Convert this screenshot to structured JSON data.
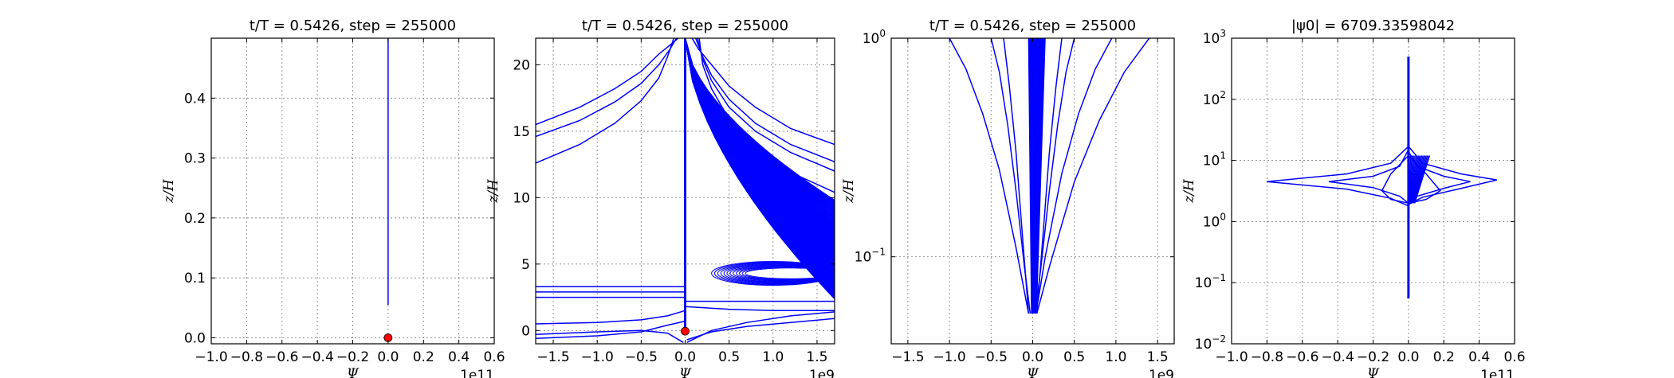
{
  "colors": {
    "line": "#0000ff",
    "marker": "#ff0000",
    "grid": "#888888"
  },
  "chart_data": [
    {
      "type": "line",
      "title": "t/T = 0.5426, step = 255000",
      "xlabel": "Ψ",
      "ylabel": "z/H",
      "x_offset_label": "1e11",
      "xlim": [
        -1.0,
        0.6
      ],
      "ylim": [
        -0.01,
        0.5
      ],
      "xticks": [
        "−1.0",
        "−0.8",
        "−0.6",
        "−0.4",
        "−0.2",
        "0.0",
        "0.2",
        "0.4",
        "0.6"
      ],
      "xtick_values": [
        -1.0,
        -0.8,
        -0.6,
        -0.4,
        -0.2,
        0.0,
        0.2,
        0.4,
        0.6
      ],
      "yticks": [
        "0.0",
        "0.1",
        "0.2",
        "0.3",
        "0.4"
      ],
      "ytick_values": [
        0.0,
        0.1,
        0.2,
        0.3,
        0.4
      ],
      "grid": true,
      "yscale": "linear",
      "series": [
        {
          "x": [
            0.0,
            0.0
          ],
          "y": [
            0.055,
            0.5
          ],
          "width": 4
        }
      ],
      "marker": {
        "x": 0.0,
        "y": 0.0
      }
    },
    {
      "type": "line",
      "title": "t/T = 0.5426, step = 255000",
      "xlabel": "Ψ",
      "ylabel": "z/H",
      "x_offset_label": "1e9",
      "xlim": [
        -1.7,
        1.7
      ],
      "ylim": [
        -1.0,
        22.0
      ],
      "xticks": [
        "−1.5",
        "−1.0",
        "−0.5",
        "0.0",
        "0.5",
        "1.0",
        "1.5"
      ],
      "xtick_values": [
        -1.5,
        -1.0,
        -0.5,
        0.0,
        0.5,
        1.0,
        1.5
      ],
      "yticks": [
        "0",
        "5",
        "10",
        "15",
        "20"
      ],
      "ytick_values": [
        0,
        5,
        10,
        15,
        20
      ],
      "grid": true,
      "yscale": "linear",
      "series": [
        {
          "x": [
            -1.7,
            -1.2,
            -0.8,
            -0.5,
            -0.3,
            -0.15,
            -0.08
          ],
          "y": [
            15.5,
            16.8,
            18.2,
            19.5,
            20.8,
            21.6,
            22.0
          ]
        },
        {
          "x": [
            -1.7,
            -1.2,
            -0.8,
            -0.5,
            -0.3,
            -0.17,
            -0.1
          ],
          "y": [
            14.6,
            15.8,
            17.2,
            18.6,
            20.0,
            21.2,
            22.0
          ]
        },
        {
          "x": [
            -1.7,
            -1.2,
            -0.8,
            -0.5,
            -0.3,
            -0.2,
            -0.13
          ],
          "y": [
            12.6,
            14.0,
            15.6,
            17.3,
            19.0,
            20.6,
            22.0
          ]
        },
        {
          "x": [
            1.7,
            1.2,
            0.8,
            0.5,
            0.3,
            0.15,
            0.08
          ],
          "y": [
            14.0,
            15.2,
            16.8,
            18.4,
            20.0,
            21.2,
            22.0
          ]
        },
        {
          "x": [
            1.7,
            1.2,
            0.8,
            0.5,
            0.3,
            0.2,
            0.12
          ],
          "y": [
            12.7,
            14.0,
            15.6,
            17.4,
            19.2,
            20.6,
            22.0
          ]
        },
        {
          "x": [
            1.7,
            1.2,
            0.8,
            0.5,
            0.3,
            0.2,
            0.14
          ],
          "y": [
            12.0,
            13.4,
            15.0,
            16.8,
            18.8,
            20.4,
            22.0
          ]
        },
        {
          "x": [
            1.7,
            1.2,
            0.8,
            0.5,
            0.3,
            0.2,
            0.16
          ],
          "y": [
            10.4,
            11.9,
            13.8,
            15.9,
            18.2,
            20.0,
            22.0
          ]
        },
        {
          "x": [
            -1.7,
            -1.0,
            -0.5,
            -0.2,
            0.0
          ],
          "y": [
            -0.6,
            -0.4,
            -0.1,
            0.4,
            0.7
          ]
        },
        {
          "x": [
            -1.7,
            -1.0,
            -0.5,
            -0.2,
            0.0
          ],
          "y": [
            0.5,
            0.6,
            0.8,
            1.1,
            1.5
          ]
        },
        {
          "x": [
            -1.7,
            -1.0,
            -0.5,
            -0.2,
            -0.02
          ],
          "y": [
            -0.3,
            -0.1,
            0.0,
            -0.2,
            -0.9
          ]
        },
        {
          "x": [
            0.02,
            0.3,
            0.7,
            1.2,
            1.7
          ],
          "y": [
            -0.9,
            0.0,
            0.6,
            1.1,
            1.4
          ]
        },
        {
          "x": [
            0.02,
            0.3,
            0.7,
            1.2,
            1.7
          ],
          "y": [
            -0.7,
            -0.1,
            0.3,
            0.6,
            0.9
          ]
        },
        {
          "x": [
            0.0,
            0.5,
            1.0,
            1.7
          ],
          "y": [
            1.8,
            1.6,
            1.5,
            1.5
          ]
        },
        {
          "x": [
            -1.7,
            0.0
          ],
          "y": [
            3.3,
            3.3
          ]
        },
        {
          "x": [
            -1.7,
            0.0
          ],
          "y": [
            2.9,
            2.9
          ]
        },
        {
          "x": [
            -1.7,
            0.0
          ],
          "y": [
            2.5,
            2.5
          ]
        },
        {
          "x": [
            0.0,
            1.7
          ],
          "y": [
            2.2,
            2.2
          ]
        }
      ],
      "fill_region": {
        "x": [
          0.0,
          1.7
        ],
        "y_base": 2.0,
        "y_top_at_x0": 22.0,
        "y_top_at_xmax": 9.8,
        "density": 80
      },
      "lobes": {
        "x_range": [
          0.3,
          1.7
        ],
        "y_center": 4.3,
        "amplitude": 0.9,
        "count": 12
      },
      "vertical_line": {
        "x": 0.0,
        "y": [
          0.0,
          22.0
        ]
      },
      "marker": {
        "x": 0.0,
        "y": -0.05
      }
    },
    {
      "type": "line",
      "title": "t/T = 0.5426, step = 255000",
      "xlabel": "Ψ",
      "ylabel": "z/H",
      "x_offset_label": "1e9",
      "xlim": [
        -1.7,
        1.7
      ],
      "ylim": [
        0.04,
        1.0
      ],
      "xticks": [
        "−1.5",
        "−1.0",
        "−0.5",
        "0.0",
        "0.5",
        "1.0",
        "1.5"
      ],
      "xtick_values": [
        -1.5,
        -1.0,
        -0.5,
        0.0,
        0.5,
        1.0,
        1.5
      ],
      "yticks": [
        "10^-1",
        "10^0"
      ],
      "ytick_values": [
        0.1,
        1.0
      ],
      "grid": true,
      "yscale": "log",
      "series": [
        {
          "x": [
            -1.0,
            -0.8,
            -0.6,
            -0.4,
            -0.2,
            -0.05
          ],
          "y": [
            1.0,
            0.72,
            0.45,
            0.25,
            0.11,
            0.055
          ]
        },
        {
          "x": [
            -0.5,
            -0.4,
            -0.3,
            -0.2,
            -0.1,
            -0.03
          ],
          "y": [
            1.0,
            0.7,
            0.4,
            0.2,
            0.09,
            0.055
          ]
        },
        {
          "x": [
            -0.35,
            -0.28,
            -0.2,
            -0.12,
            -0.05
          ],
          "y": [
            1.0,
            0.6,
            0.3,
            0.12,
            0.055
          ]
        },
        {
          "x": [
            1.4,
            1.1,
            0.8,
            0.5,
            0.2,
            0.05
          ],
          "y": [
            1.0,
            0.7,
            0.42,
            0.22,
            0.09,
            0.055
          ]
        },
        {
          "x": [
            0.95,
            0.75,
            0.55,
            0.35,
            0.15,
            0.04
          ],
          "y": [
            1.0,
            0.72,
            0.45,
            0.24,
            0.1,
            0.055
          ]
        },
        {
          "x": [
            0.5,
            0.4,
            0.3,
            0.2,
            0.1,
            0.03
          ],
          "y": [
            1.0,
            0.7,
            0.4,
            0.2,
            0.09,
            0.055
          ]
        },
        {
          "x": [
            0.35,
            0.28,
            0.2,
            0.12,
            0.05
          ],
          "y": [
            1.0,
            0.6,
            0.3,
            0.12,
            0.055
          ]
        }
      ],
      "dense_band": {
        "x": [
          -0.05,
          0.15
        ],
        "y": [
          0.055,
          1.0
        ],
        "count": 30
      }
    },
    {
      "type": "line",
      "title": "|ψ0| = 6709.33598042",
      "xlabel": "Ψ",
      "ylabel": "z/H",
      "x_offset_label": "1e11",
      "xlim": [
        -1.0,
        0.6
      ],
      "ylim": [
        0.01,
        1000
      ],
      "xticks": [
        "−1.0",
        "−0.8",
        "−0.6",
        "−0.4",
        "−0.2",
        "0.0",
        "0.2",
        "0.4",
        "0.6"
      ],
      "xtick_values": [
        -1.0,
        -0.8,
        -0.6,
        -0.4,
        -0.2,
        0.0,
        0.2,
        0.4,
        0.6
      ],
      "yticks": [
        "10^-2",
        "10^-1",
        "10^0",
        "10^1",
        "10^2",
        "10^3"
      ],
      "ytick_values": [
        0.01,
        0.1,
        1,
        10,
        100,
        1000
      ],
      "grid": true,
      "yscale": "log",
      "series": [
        {
          "x": [
            0.0,
            -0.1,
            -0.35,
            -0.8,
            -0.35,
            -0.1,
            0.0
          ],
          "y": [
            17,
            9,
            6,
            4.5,
            3.4,
            2.4,
            1.8
          ]
        },
        {
          "x": [
            0.0,
            0.08,
            0.3,
            0.5,
            0.3,
            0.08,
            0.0
          ],
          "y": [
            17,
            9,
            6,
            4.8,
            3.5,
            2.5,
            1.9
          ]
        },
        {
          "x": [
            0.0,
            -0.05,
            -0.2,
            -0.45,
            -0.2,
            -0.05,
            0.0
          ],
          "y": [
            15,
            8,
            5.5,
            4.5,
            3.6,
            2.6,
            2.0
          ]
        },
        {
          "x": [
            0.0,
            0.05,
            0.2,
            0.35,
            0.2,
            0.05,
            0.0
          ],
          "y": [
            14,
            8,
            5.5,
            4.5,
            3.5,
            2.6,
            2.0
          ]
        },
        {
          "x": [
            0.0,
            -0.1,
            -0.15,
            -0.1,
            0.0
          ],
          "y": [
            12,
            6,
            3.2,
            2.3,
            2.0
          ]
        },
        {
          "x": [
            0.0,
            0.1,
            0.18,
            0.1,
            0.0
          ],
          "y": [
            12,
            6,
            3.2,
            2.3,
            2.0
          ]
        }
      ],
      "vertical_line": {
        "x": 0.0,
        "y": [
          0.055,
          500
        ]
      },
      "dense_band": {
        "x": [
          0.0,
          0.12
        ],
        "y": [
          2.0,
          12.0
        ],
        "count": 20
      }
    }
  ]
}
